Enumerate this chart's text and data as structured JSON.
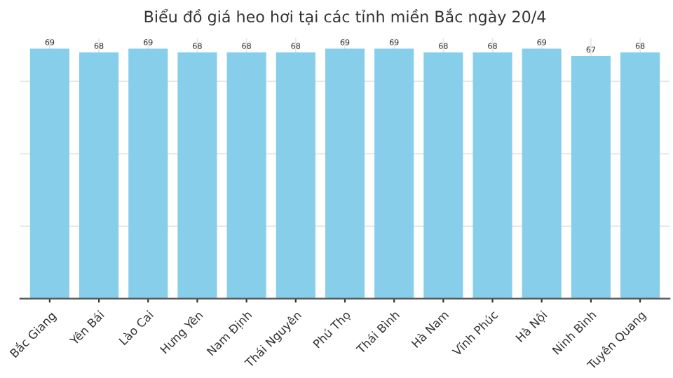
{
  "chart_data": {
    "type": "bar",
    "title": "Biểu đồ giá heo hơi tại các tỉnh miền Bắc ngày 20/4",
    "categories": [
      "Bắc Giang",
      "Yên Bái",
      "Lào Cai",
      "Hưng Yên",
      "Nam Định",
      "Thái Nguyên",
      "Phú Thọ",
      "Thái Bình",
      "Hà Nam",
      "Vĩnh Phúc",
      "Hà Nội",
      "Ninh Bình",
      "Tuyên Quang"
    ],
    "values": [
      69,
      68,
      69,
      68,
      68,
      68,
      69,
      69,
      68,
      68,
      69,
      67,
      68
    ],
    "color": "#87ceeb",
    "ylim": [
      0,
      72
    ],
    "grid": true,
    "data_labels": true,
    "tick_labels": "x"
  }
}
